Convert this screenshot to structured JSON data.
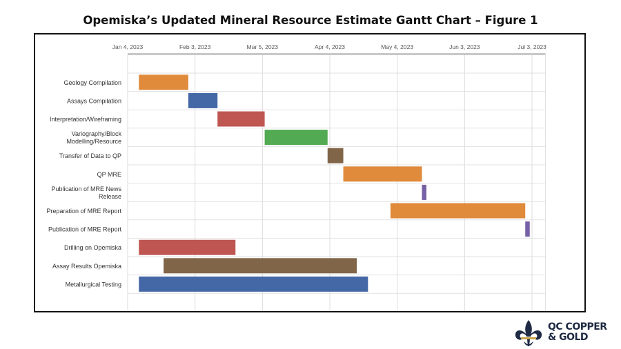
{
  "title": "Opemiska’s Updated Mineral Resource Estimate Gantt Chart – Figure 1",
  "logo": {
    "line1": "QC COPPER",
    "line2": "& GOLD",
    "icon": "fleur-de-lis-icon"
  },
  "colors": {
    "orange": "#e08a3c",
    "blue": "#4467a6",
    "red": "#bf5652",
    "green": "#52aa52",
    "brown": "#806548",
    "purple": "#7660a6"
  },
  "chart_data": {
    "type": "gantt",
    "x_ticks": [
      {
        "date": "2023-01-04",
        "label": "Jan 4, 2023"
      },
      {
        "date": "2023-02-03",
        "label": "Feb 3, 2023"
      },
      {
        "date": "2023-03-05",
        "label": "Mar 5, 2023"
      },
      {
        "date": "2023-04-04",
        "label": "Apr 4, 2023"
      },
      {
        "date": "2023-05-04",
        "label": "May 4, 2023"
      },
      {
        "date": "2023-06-03",
        "label": "Jun 3, 2023"
      },
      {
        "date": "2023-07-03",
        "label": "Jul 3, 2023"
      }
    ],
    "xlim": [
      "2023-01-04",
      "2023-07-09"
    ],
    "grid": true,
    "tasks": [
      {
        "label": [
          "Geology Compilation"
        ],
        "start": "2023-01-09",
        "end": "2023-01-31",
        "color": "#e08a3c"
      },
      {
        "label": [
          "Assays Compilation"
        ],
        "start": "2023-01-31",
        "end": "2023-02-13",
        "color": "#4467a6"
      },
      {
        "label": [
          "Interpretation/Wireframing"
        ],
        "start": "2023-02-13",
        "end": "2023-03-06",
        "color": "#bf5652"
      },
      {
        "label": [
          "Variography/Block",
          "Modelling/Resource"
        ],
        "start": "2023-03-06",
        "end": "2023-04-03",
        "color": "#52aa52"
      },
      {
        "label": [
          "Transfer of Data to QP"
        ],
        "start": "2023-04-03",
        "end": "2023-04-10",
        "color": "#806548"
      },
      {
        "label": [
          "QP MRE"
        ],
        "start": "2023-04-10",
        "end": "2023-05-15",
        "color": "#e08a3c"
      },
      {
        "label": [
          "Publication of MRE News",
          "Release"
        ],
        "start": "2023-05-15",
        "end": "2023-05-17",
        "color": "#7660a6"
      },
      {
        "label": [
          "Preparation of MRE Report"
        ],
        "start": "2023-05-01",
        "end": "2023-06-30",
        "color": "#e08a3c"
      },
      {
        "label": [
          "Publication of MRE Report"
        ],
        "start": "2023-06-30",
        "end": "2023-07-02",
        "color": "#7660a6"
      },
      {
        "label": [
          "Drilling on Opemiska"
        ],
        "start": "2023-01-09",
        "end": "2023-02-21",
        "color": "#bf5652"
      },
      {
        "label": [
          "Assay Results Opemiska"
        ],
        "start": "2023-01-20",
        "end": "2023-04-16",
        "color": "#806548"
      },
      {
        "label": [
          "Metallurgical Testing"
        ],
        "start": "2023-01-09",
        "end": "2023-04-21",
        "color": "#4467a6"
      }
    ]
  }
}
